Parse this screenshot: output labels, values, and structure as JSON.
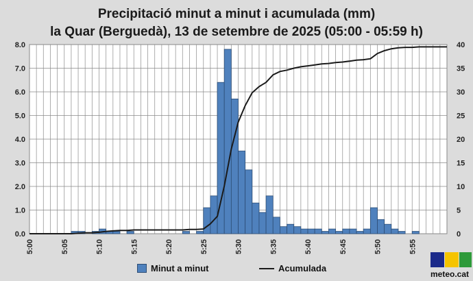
{
  "chart_data": {
    "type": "bar+line",
    "title": "Precipitació minut a minut i acumulada (mm)",
    "subtitle": "la Quar (Berguedà), 13 de setembre de 2025 (05:00 - 05:59 h)",
    "x_tick_labels": [
      "5:00",
      "5:05",
      "5:10",
      "5:15",
      "5:20",
      "5:25",
      "5:30",
      "5:35",
      "5:40",
      "5:45",
      "5:50",
      "5:55"
    ],
    "y_left": {
      "ylim": [
        0,
        8
      ],
      "ticks": [
        "0.0",
        "1.0",
        "2.0",
        "3.0",
        "4.0",
        "5.0",
        "6.0",
        "7.0",
        "8.0"
      ]
    },
    "y_right": {
      "ylim": [
        0,
        40
      ],
      "ticks": [
        "0",
        "5",
        "10",
        "15",
        "20",
        "25",
        "30",
        "35",
        "40"
      ]
    },
    "grid": true,
    "legend_position": "bottom",
    "series": [
      {
        "name": "Minut a minut",
        "type": "bar",
        "color": "#4f81bd",
        "values": [
          0,
          0,
          0,
          0,
          0,
          0,
          0.1,
          0.1,
          0,
          0.1,
          0.2,
          0.1,
          0.1,
          0,
          0.1,
          0,
          0,
          0,
          0,
          0,
          0,
          0,
          0.1,
          0,
          0.1,
          1.1,
          1.6,
          6.4,
          7.8,
          5.7,
          3.5,
          2.7,
          1.3,
          0.9,
          1.6,
          0.7,
          0.3,
          0.4,
          0.3,
          0.2,
          0.2,
          0.2,
          0.1,
          0.2,
          0.1,
          0.2,
          0.2,
          0.1,
          0.2,
          1.1,
          0.6,
          0.4,
          0.2,
          0.1,
          0,
          0.1,
          0,
          0,
          0,
          0
        ]
      },
      {
        "name": "Acumulada",
        "type": "line",
        "color": "#1a1a1a",
        "values": [
          0,
          0,
          0,
          0,
          0,
          0,
          0.1,
          0.2,
          0.2,
          0.3,
          0.5,
          0.6,
          0.7,
          0.7,
          0.8,
          0.8,
          0.8,
          0.8,
          0.8,
          0.8,
          0.8,
          0.8,
          0.9,
          0.9,
          1.0,
          2.1,
          3.7,
          10.1,
          17.9,
          23.6,
          27.1,
          29.8,
          31.1,
          32.0,
          33.6,
          34.3,
          34.6,
          35.0,
          35.3,
          35.5,
          35.7,
          35.9,
          36.0,
          36.2,
          36.3,
          36.5,
          36.7,
          36.8,
          37.0,
          38.1,
          38.7,
          39.1,
          39.3,
          39.4,
          39.4,
          39.5,
          39.5,
          39.5,
          39.5,
          39.5
        ]
      }
    ]
  },
  "logo": {
    "text": "meteo.cat"
  }
}
